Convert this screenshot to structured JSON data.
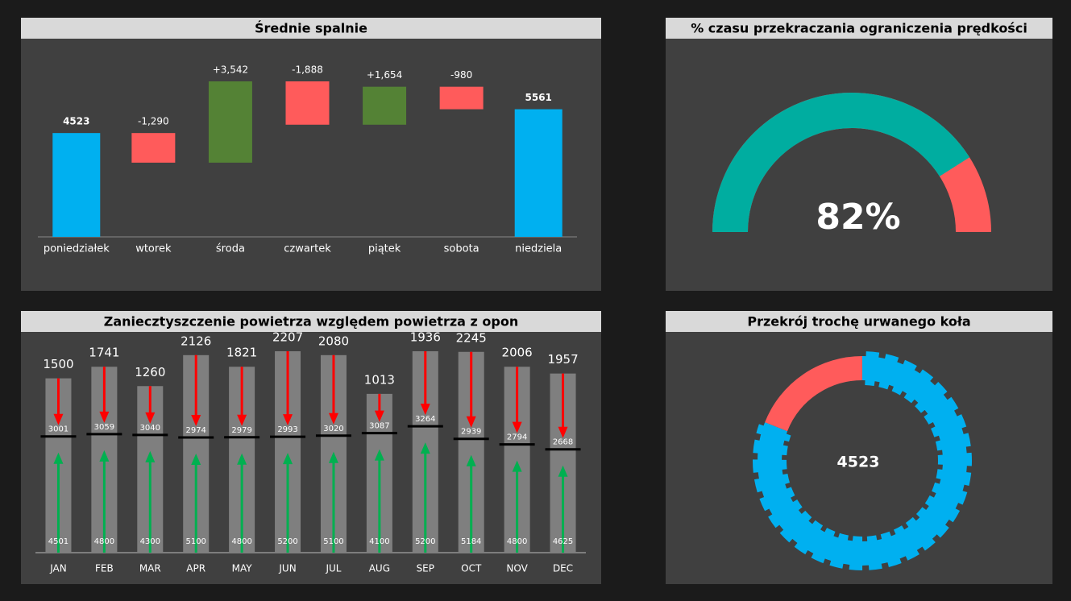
{
  "chart_data": [
    {
      "type": "waterfall",
      "title": "Średnie spalnie",
      "categories": [
        "poniedziałek",
        "wtorek",
        "środa",
        "czwartek",
        "piątek",
        "sobota",
        "niedziela"
      ],
      "values": [
        4523,
        -1290,
        3542,
        -1888,
        1654,
        -980,
        5561
      ],
      "value_labels": [
        "4523",
        "-1,290",
        "+3,542",
        "-1,888",
        "+1,654",
        "-980",
        "5561"
      ],
      "measure": [
        "total",
        "relative",
        "relative",
        "relative",
        "relative",
        "relative",
        "total"
      ],
      "colors": {
        "total": "#00b0f0",
        "increase": "#548235",
        "decrease": "#ff5b5b"
      }
    },
    {
      "type": "gauge",
      "title": "% czasu przekraczania ograniczenia prędkości",
      "value": 82,
      "value_label": "82%",
      "range": [
        0,
        100
      ],
      "colors": [
        "#00ada0",
        "#ff5b5b"
      ]
    },
    {
      "type": "arrows",
      "title": "Zaniecztyszczenie powietrza względem powietrza z opon",
      "categories": [
        "JAN",
        "FEB",
        "MAR",
        "APR",
        "MAY",
        "JUN",
        "JUL",
        "AUG",
        "SEP",
        "OCT",
        "NOV",
        "DEC"
      ],
      "series": [
        {
          "color": "#ff0000",
          "values": [
            1500,
            1741,
            1260,
            2126,
            1821,
            2207,
            2080,
            1013,
            1936,
            2245,
            2006,
            1957
          ]
        },
        {
          "color": "#000000",
          "values": [
            3001,
            3059,
            3040,
            2974,
            2979,
            2993,
            3020,
            3087,
            3264,
            2939,
            2794,
            2668
          ]
        },
        {
          "color": "#00b050",
          "values": [
            4501,
            4800,
            4300,
            5100,
            4800,
            5200,
            5100,
            4100,
            5200,
            5184,
            4800,
            4625
          ]
        }
      ],
      "bar_color": "#7f7f7f"
    },
    {
      "type": "donut",
      "title": "Przekrój trochę urwanego koła",
      "values": [
        81,
        19
      ],
      "colors": [
        "#00b0f0",
        "#ff5b5b"
      ],
      "center_value": 4523
    }
  ]
}
